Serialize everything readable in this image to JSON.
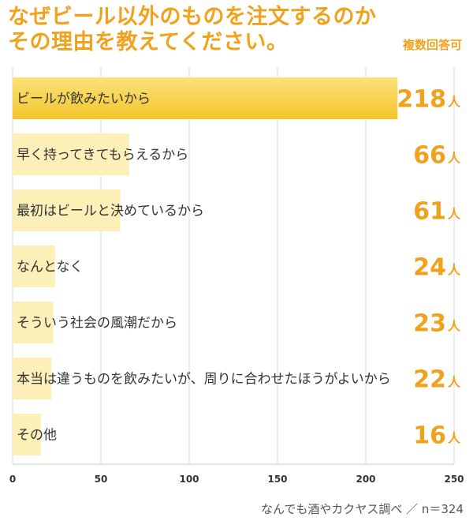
{
  "header": {
    "title_line1": "なぜビール以外のものを注文するのか",
    "title_line2": "その理由を教えてください。",
    "badge": "複数回答可"
  },
  "chart_data": {
    "type": "bar",
    "orientation": "horizontal",
    "categories": [
      "ビールが飲みたいから",
      "早く持ってきてもらえるから",
      "最初はビールと決めているから",
      "なんとなく",
      "そういう社会の風潮だから",
      "本当は違うものを飲みたいが、周りに合わせたほうがよいから",
      "その他"
    ],
    "values": [
      218,
      66,
      61,
      24,
      23,
      22,
      16
    ],
    "value_unit": "人",
    "xlim": [
      0,
      250
    ],
    "xticks": [
      0,
      50,
      100,
      150,
      200,
      250
    ],
    "grid": "vertical",
    "colors": {
      "top_bar": "#f6cd3a",
      "bar": "#fcefb8",
      "value_text": "#f0a21c",
      "grid": "#dddddd"
    }
  },
  "footer": {
    "source": "なんでも酒やカクヤス調べ ／ n＝324"
  }
}
